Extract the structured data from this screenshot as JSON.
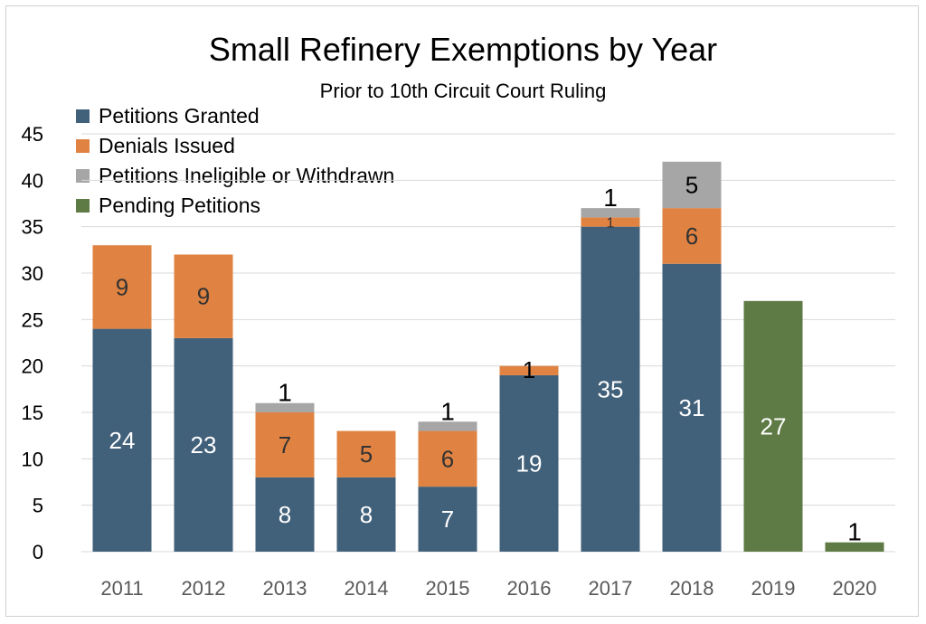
{
  "chart_data": {
    "type": "bar",
    "stacked": true,
    "title": "Small Refinery Exemptions by Year",
    "subtitle": "Prior to 10th Circuit Court Ruling",
    "categories": [
      "2011",
      "2012",
      "2013",
      "2014",
      "2015",
      "2016",
      "2017",
      "2018",
      "2019",
      "2020"
    ],
    "series": [
      {
        "name": "Petitions Granted",
        "color": "#41607a",
        "values": [
          24,
          23,
          8,
          8,
          7,
          19,
          35,
          31,
          0,
          0
        ],
        "labels": [
          "24",
          "23",
          "8",
          "8",
          "7",
          "19",
          "35",
          "31",
          "",
          ""
        ]
      },
      {
        "name": "Denials Issued",
        "color": "#e08342",
        "values": [
          9,
          9,
          7,
          5,
          6,
          1,
          1,
          6,
          0,
          0
        ],
        "labels": [
          "9",
          "9",
          "7",
          "5",
          "6",
          "1",
          "1",
          "6",
          "",
          ""
        ]
      },
      {
        "name": "Petitions  Ineligible or Withdrawn",
        "color": "#a6a6a6",
        "values": [
          0,
          0,
          1,
          0,
          1,
          0,
          1,
          5,
          0,
          0
        ],
        "labels": [
          "",
          "",
          "1",
          "",
          "1",
          "",
          "1",
          "5",
          "",
          ""
        ]
      },
      {
        "name": "Pending Petitions",
        "color": "#5e7a45",
        "values": [
          0,
          0,
          0,
          0,
          0,
          0,
          0,
          0,
          27,
          1
        ],
        "labels": [
          "",
          "",
          "",
          "",
          "",
          "",
          "",
          "",
          "27",
          "1"
        ]
      }
    ],
    "ylim": [
      0,
      45
    ],
    "yticks": [
      "0",
      "5",
      "10",
      "15",
      "20",
      "25",
      "30",
      "35",
      "40",
      "45"
    ],
    "grid": true,
    "legend_position": "top-left"
  }
}
